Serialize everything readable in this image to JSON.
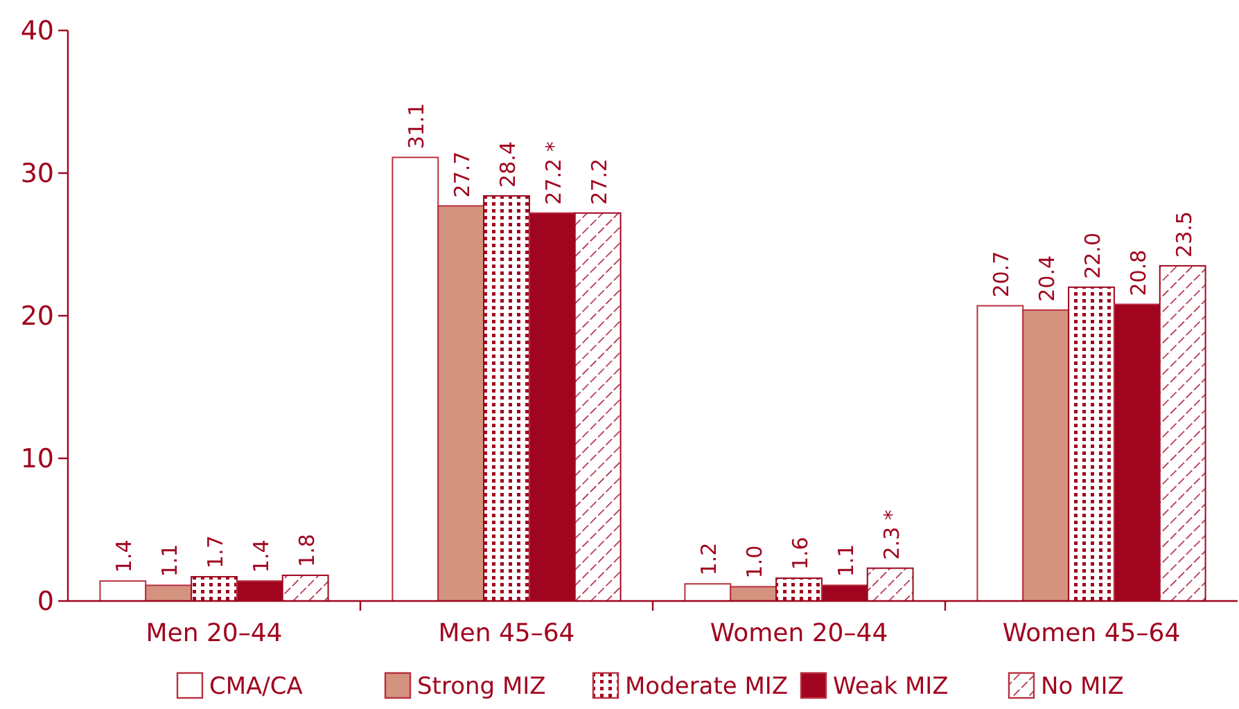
{
  "chart_data": {
    "type": "bar",
    "categories": [
      "Men 20–44",
      "Men 45–64",
      "Women 20–44",
      "Women 45–64"
    ],
    "series": [
      {
        "name": "CMA/CA",
        "color": "#ffffff",
        "values": [
          1.4,
          31.1,
          1.2,
          20.7
        ],
        "value_labels": [
          "1.4",
          "31.1",
          "1.2",
          "20.7"
        ]
      },
      {
        "name": "Strong MIZ",
        "color": "#d4937f",
        "values": [
          1.1,
          27.7,
          1.0,
          20.4
        ],
        "value_labels": [
          "1.1",
          "27.7",
          "1.0",
          "20.4"
        ]
      },
      {
        "name": "Moderate MIZ",
        "color": "#a0041e",
        "values": [
          1.7,
          28.4,
          1.6,
          22.0
        ],
        "value_labels": [
          "1.7",
          "28.4",
          "1.6",
          "22.0"
        ]
      },
      {
        "name": "Weak MIZ",
        "color": "#a0041e",
        "values": [
          1.4,
          27.2,
          1.1,
          20.8
        ],
        "value_labels": [
          "1.4",
          "27.2 *",
          "1.1",
          "20.8"
        ]
      },
      {
        "name": "No MIZ",
        "color": "#a0041e",
        "values": [
          1.8,
          27.2,
          2.3,
          23.5
        ],
        "value_labels": [
          "1.8",
          "27.2",
          "2.3 *",
          "23.5"
        ]
      }
    ],
    "ylim": [
      0,
      40
    ],
    "yticks": [
      0,
      10,
      20,
      30,
      40
    ],
    "grid": false,
    "legend": "bottom"
  }
}
